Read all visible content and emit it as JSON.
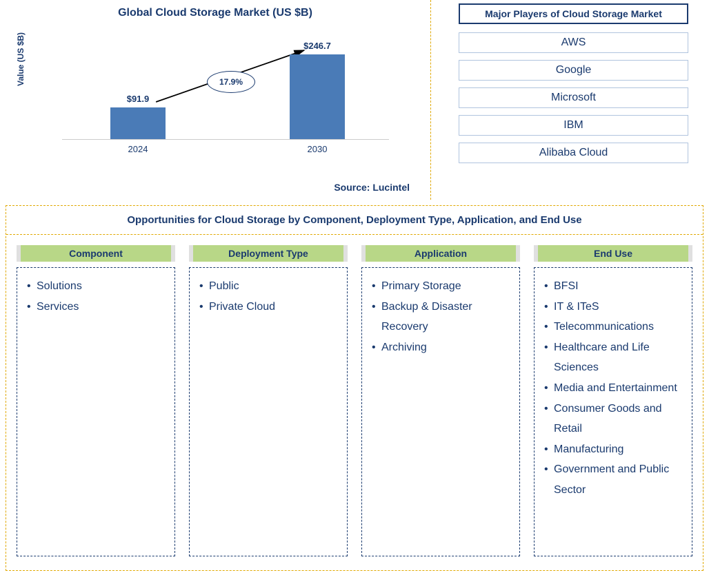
{
  "chart": {
    "type": "bar",
    "title": "Global Cloud Storage Market (US $B)",
    "y_label": "Value (US $B)",
    "categories": [
      "2024",
      "2030"
    ],
    "values": [
      91.9,
      246.7
    ],
    "value_labels": [
      "$91.9",
      "$246.7"
    ],
    "bar_color": "#4a7bb7",
    "max_value": 260,
    "cagr_label": "17.9%",
    "cagr_oval_border": "#1a3a6e",
    "axis_color": "#cccccc",
    "text_color": "#1a3a6e",
    "source": "Source: Lucintel"
  },
  "players": {
    "title": "Major Players of Cloud Storage Market",
    "list": [
      "AWS",
      "Google",
      "Microsoft",
      "IBM",
      "Alibaba Cloud"
    ],
    "title_border": "#1a3a6e",
    "box_border": "#b0c4de"
  },
  "opportunities": {
    "title": "Opportunities for Cloud Storage by Component, Deployment Type, Application, and End Use",
    "header_bg": "#b8d787",
    "box_border_color": "#1a3a6e",
    "outer_border_color": "#e0a800",
    "categories": [
      {
        "name": "Component",
        "items": [
          "Solutions",
          "Services"
        ]
      },
      {
        "name": "Deployment Type",
        "items": [
          "Public",
          "Private Cloud"
        ]
      },
      {
        "name": "Application",
        "items": [
          "Primary Storage",
          "Backup & Disaster Recovery",
          "Archiving"
        ]
      },
      {
        "name": "End Use",
        "items": [
          "BFSI",
          "IT & ITeS",
          "Telecommunications",
          "Healthcare and Life Sciences",
          "Media and Entertainment",
          "Consumer Goods and Retail",
          "Manufacturing",
          "Government and Public Sector"
        ]
      }
    ]
  }
}
